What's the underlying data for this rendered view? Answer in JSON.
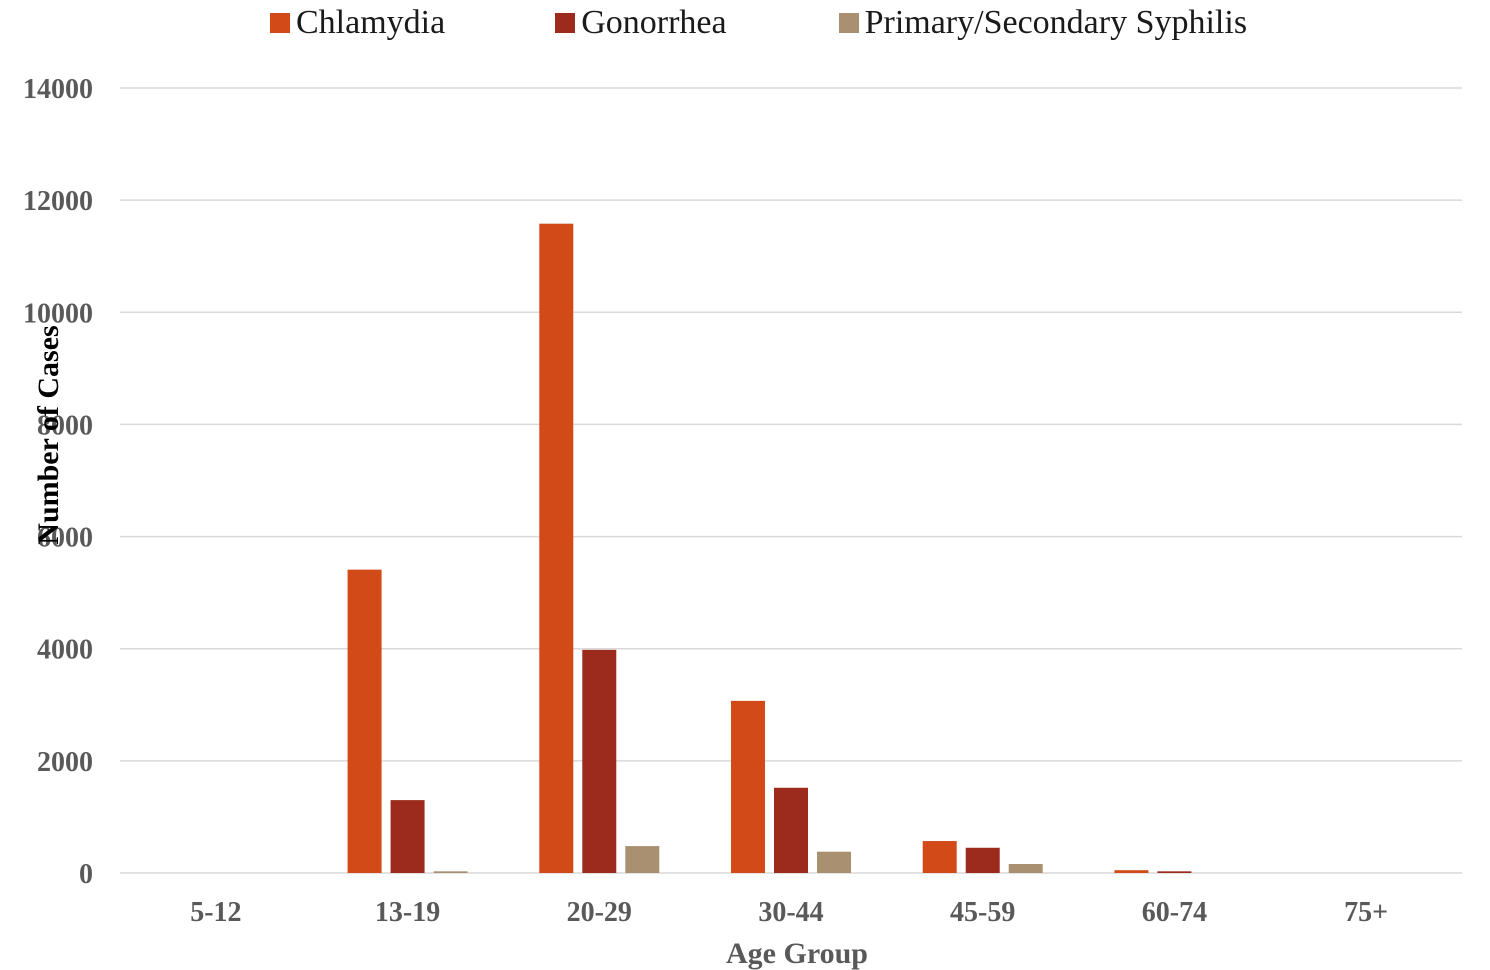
{
  "chart_data": {
    "type": "bar",
    "title": "",
    "xlabel": "Age Group",
    "ylabel": "Number of Cases",
    "categories": [
      "5-12",
      "13-19",
      "20-29",
      "30-44",
      "45-59",
      "60-74",
      "75+"
    ],
    "series": [
      {
        "name": "Chlamydia",
        "color": "#d24a17",
        "values": [
          0,
          5410,
          11580,
          3070,
          570,
          50,
          0
        ]
      },
      {
        "name": "Gonorrhea",
        "color": "#9c2b1e",
        "values": [
          0,
          1300,
          3980,
          1520,
          450,
          30,
          0
        ]
      },
      {
        "name": "Primary/Secondary Syphilis",
        "color": "#a89070",
        "values": [
          0,
          30,
          480,
          380,
          160,
          0,
          0
        ]
      }
    ],
    "ylim": [
      0,
      14000
    ],
    "yticks": [
      0,
      2000,
      4000,
      6000,
      8000,
      10000,
      12000,
      14000
    ],
    "grid": true,
    "legend_position": "top"
  }
}
